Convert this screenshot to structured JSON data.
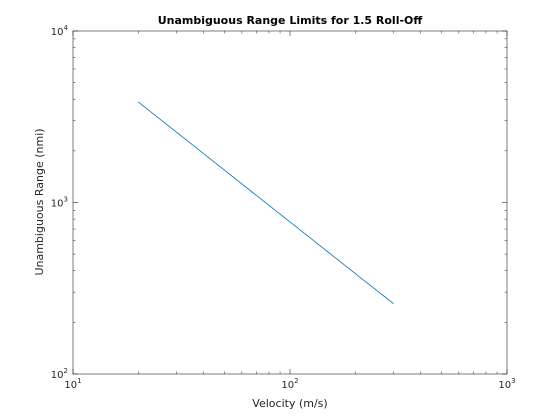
{
  "chart_data": {
    "type": "line",
    "title": "Unambiguous Range Limits for 1.5 Roll-Off",
    "xlabel": "Velocity (m/s)",
    "ylabel": "Unambiguous Range (nmi)",
    "xscale": "log",
    "yscale": "log",
    "xlim": [
      10,
      1000
    ],
    "ylim": [
      100,
      10000
    ],
    "x_ticks": [
      {
        "base": "10",
        "exp": "1",
        "value": 10
      },
      {
        "base": "10",
        "exp": "2",
        "value": 100
      },
      {
        "base": "10",
        "exp": "3",
        "value": 1000
      }
    ],
    "y_ticks": [
      {
        "base": "10",
        "exp": "2",
        "value": 100
      },
      {
        "base": "10",
        "exp": "3",
        "value": 1000
      },
      {
        "base": "10",
        "exp": "4",
        "value": 10000
      }
    ],
    "grid": false,
    "series": [
      {
        "color": "#0072bd",
        "x": [
          20,
          30,
          50,
          100,
          150,
          200,
          300
        ],
        "y": [
          3850,
          2570,
          1540,
          770,
          513,
          385,
          257
        ]
      }
    ]
  }
}
